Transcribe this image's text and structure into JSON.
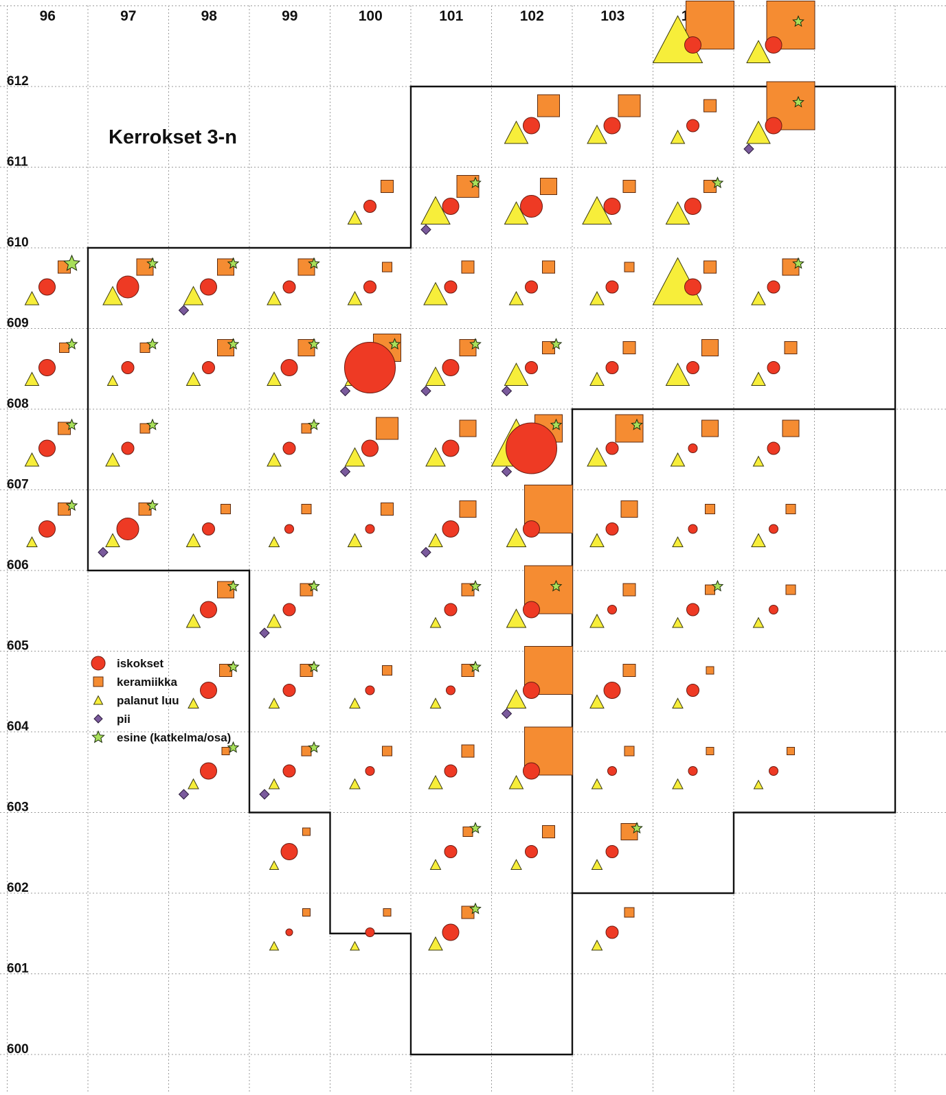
{
  "title": "Kerrokset 3-n",
  "columns": [
    "96",
    "97",
    "98",
    "99",
    "100",
    "101",
    "102",
    "103",
    "104"
  ],
  "rows": [
    "612",
    "611",
    "610",
    "609",
    "608",
    "607",
    "606",
    "605",
    "604",
    "603",
    "602",
    "601",
    "600"
  ],
  "colors": {
    "iskokset": "#ee3a24",
    "keramiikka": "#f58c32",
    "palanut_luu": "#f7ee3a",
    "pii": "#7a5a9c",
    "esine": "#a8e05a",
    "grid": "#9a9a9a",
    "boundary": "#111111"
  },
  "legend": [
    {
      "key": "iskokset",
      "label": "iskokset",
      "icon": "circle"
    },
    {
      "key": "keramiikka",
      "label": "keramiikka",
      "icon": "square"
    },
    {
      "key": "palanut_luu",
      "label": "palanut luu",
      "icon": "triangle"
    },
    {
      "key": "pii",
      "label": "pii",
      "icon": "diamond"
    },
    {
      "key": "esine",
      "label": "esine (katkelma/osa)",
      "icon": "star"
    }
  ],
  "squares": [
    {
      "x": 105,
      "y": 612,
      "c": 1,
      "k": 4,
      "t": 4
    },
    {
      "x": 106,
      "y": 612,
      "c": 1,
      "k": 4,
      "t": 2,
      "s": 1
    },
    {
      "x": 103,
      "y": 611,
      "c": 1,
      "k": 2,
      "t": 2
    },
    {
      "x": 104,
      "y": 611,
      "c": 1,
      "k": 2,
      "t": 1
    },
    {
      "x": 105,
      "y": 611,
      "c": 0,
      "k": 0,
      "t": 0
    },
    {
      "x": 106,
      "y": 611,
      "c": 1,
      "k": 4,
      "t": 2,
      "p": 1,
      "s": 1
    },
    {
      "x": 101,
      "y": 610,
      "c": 0,
      "k": 0,
      "t": 0
    },
    {
      "x": 102,
      "y": 610,
      "c": 1,
      "k": 2,
      "t": 3,
      "p": 1,
      "s": 1
    },
    {
      "x": 103,
      "y": 610,
      "c": 2,
      "k": 1,
      "t": 2
    },
    {
      "x": 104,
      "y": 610,
      "c": 1,
      "k": 0,
      "t": 3
    },
    {
      "x": 105,
      "y": 610,
      "c": 1,
      "k": 0,
      "t": 2,
      "s": 1
    },
    {
      "x": 97,
      "y": 609,
      "c": 1,
      "k": 0,
      "t": 0,
      "s": 2
    },
    {
      "x": 98,
      "y": 609,
      "c": 2,
      "k": 1,
      "t": 1,
      "s": 1
    },
    {
      "x": 99,
      "y": 609,
      "c": 1,
      "k": 1,
      "t": 1,
      "p": 1,
      "s": 1
    },
    {
      "x": 100,
      "y": 609,
      "c": 0,
      "k": 1,
      "t": 0,
      "s": 1
    },
    {
      "x": 101,
      "y": 609,
      "c": 0,
      "k": -1,
      "t": 0
    },
    {
      "x": 102,
      "y": 609,
      "c": 0,
      "k": 0,
      "t": 2
    },
    {
      "x": 103,
      "y": 609,
      "c": 0,
      "k": 0,
      "t": 0
    },
    {
      "x": 104,
      "y": 609,
      "c": 0,
      "k": -1,
      "t": 0
    },
    {
      "x": 105,
      "y": 609,
      "c": 1,
      "k": 0,
      "t": 4
    },
    {
      "x": 106,
      "y": 609,
      "c": 0,
      "k": 1,
      "t": 0,
      "s": 1
    },
    {
      "x": 97,
      "y": 608,
      "c": 1,
      "k": -1,
      "t": 0,
      "s": 1
    },
    {
      "x": 98,
      "y": 608,
      "c": 0,
      "k": -1,
      "t": -1,
      "s": 1
    },
    {
      "x": 99,
      "y": 608,
      "c": 0,
      "k": 1,
      "t": 0,
      "s": 1
    },
    {
      "x": 100,
      "y": 608,
      "c": 1,
      "k": 1,
      "t": 0,
      "s": 1
    },
    {
      "x": 101,
      "y": 608,
      "c": 4,
      "k": 3,
      "t": 1,
      "p": 1,
      "s": 1
    },
    {
      "x": 102,
      "y": 608,
      "c": 1,
      "k": 1,
      "t": 1,
      "p": 1,
      "s": 1
    },
    {
      "x": 103,
      "y": 608,
      "c": 0,
      "k": 0,
      "t": 2,
      "p": 1,
      "s": 1
    },
    {
      "x": 104,
      "y": 608,
      "c": 0,
      "k": 0,
      "t": 0
    },
    {
      "x": 105,
      "y": 608,
      "c": 0,
      "k": 1,
      "t": 2
    },
    {
      "x": 106,
      "y": 608,
      "c": 0,
      "k": 0,
      "t": 0
    },
    {
      "x": 97,
      "y": 607,
      "c": 1,
      "k": 0,
      "t": 0,
      "s": 1
    },
    {
      "x": 98,
      "y": 607,
      "c": 0,
      "k": -1,
      "t": 0,
      "s": 1
    },
    {
      "x": 100,
      "y": 607,
      "c": 0,
      "k": -1,
      "t": 0,
      "s": 1
    },
    {
      "x": 101,
      "y": 607,
      "c": 1,
      "k": 2,
      "t": 1,
      "p": 1
    },
    {
      "x": 102,
      "y": 607,
      "c": 1,
      "k": 1,
      "t": 1
    },
    {
      "x": 103,
      "y": 607,
      "c": 4,
      "k": 3,
      "t": 4,
      "p": 1,
      "s": 1
    },
    {
      "x": 104,
      "y": 607,
      "c": 0,
      "k": 3,
      "t": 1,
      "s": 1
    },
    {
      "x": 105,
      "y": 607,
      "c": -1,
      "k": 1,
      "t": 0
    },
    {
      "x": 106,
      "y": 607,
      "c": 0,
      "k": 1,
      "t": -1
    },
    {
      "x": 97,
      "y": 606,
      "c": 1,
      "k": 0,
      "t": -1,
      "s": 1
    },
    {
      "x": 98,
      "y": 606,
      "c": 2,
      "k": 0,
      "t": 0,
      "p": 1,
      "s": 1
    },
    {
      "x": 99,
      "y": 606,
      "c": 0,
      "k": -1,
      "t": 0
    },
    {
      "x": 100,
      "y": 606,
      "c": -1,
      "k": -1,
      "t": -1
    },
    {
      "x": 101,
      "y": 606,
      "c": -1,
      "k": 0,
      "t": 0
    },
    {
      "x": 102,
      "y": 606,
      "c": 1,
      "k": 1,
      "t": 0,
      "p": 1
    },
    {
      "x": 103,
      "y": 606,
      "c": 1,
      "k": 4,
      "t": 1
    },
    {
      "x": 104,
      "y": 606,
      "c": 0,
      "k": 1,
      "t": 0
    },
    {
      "x": 105,
      "y": 606,
      "c": -1,
      "k": -1,
      "t": -1
    },
    {
      "x": 106,
      "y": 606,
      "c": -1,
      "k": -1,
      "t": 0
    },
    {
      "x": 99,
      "y": 605,
      "c": 1,
      "k": 1,
      "t": 0,
      "s": 1
    },
    {
      "x": 100,
      "y": 605,
      "c": 0,
      "k": 0,
      "t": 0,
      "p": 1,
      "s": 1
    },
    {
      "x": 102,
      "y": 605,
      "c": 0,
      "k": 0,
      "t": -1,
      "s": 1
    },
    {
      "x": 103,
      "y": 605,
      "c": 1,
      "k": 4,
      "t": 1,
      "s": 1
    },
    {
      "x": 104,
      "y": 605,
      "c": -1,
      "k": 0,
      "t": 0
    },
    {
      "x": 105,
      "y": 605,
      "c": 0,
      "k": -1,
      "t": -1,
      "s": 1
    },
    {
      "x": 106,
      "y": 605,
      "c": -1,
      "k": -1,
      "t": -1
    },
    {
      "x": 99,
      "y": 604,
      "c": 1,
      "k": 0,
      "t": -1,
      "s": 1
    },
    {
      "x": 100,
      "y": 604,
      "c": 0,
      "k": 0,
      "t": -1,
      "s": 1
    },
    {
      "x": 101,
      "y": 604,
      "c": -1,
      "k": -1,
      "t": -1
    },
    {
      "x": 102,
      "y": 604,
      "c": -1,
      "k": 0,
      "t": -1,
      "s": 1
    },
    {
      "x": 103,
      "y": 604,
      "c": 1,
      "k": 4,
      "t": 1,
      "p": 1
    },
    {
      "x": 104,
      "y": 604,
      "c": 1,
      "k": 0,
      "t": 0
    },
    {
      "x": 105,
      "y": 604,
      "c": 0,
      "k": -2,
      "t": -1
    },
    {
      "x": 99,
      "y": 603,
      "c": 1,
      "k": -2,
      "t": -1,
      "p": 1,
      "s": 1
    },
    {
      "x": 100,
      "y": 603,
      "c": 0,
      "k": -1,
      "t": -1,
      "p": 1,
      "s": 1
    },
    {
      "x": 101,
      "y": 603,
      "c": -1,
      "k": -1,
      "t": -1
    },
    {
      "x": 102,
      "y": 603,
      "c": 0,
      "k": 0,
      "t": 0
    },
    {
      "x": 103,
      "y": 603,
      "c": 1,
      "k": 4,
      "t": 0
    },
    {
      "x": 104,
      "y": 603,
      "c": -1,
      "k": -1,
      "t": -1
    },
    {
      "x": 105,
      "y": 603,
      "c": -1,
      "k": -2,
      "t": -1
    },
    {
      "x": 106,
      "y": 603,
      "c": -1,
      "k": -2,
      "t": -2
    },
    {
      "x": 100,
      "y": 602,
      "c": 1,
      "k": -2,
      "t": -2
    },
    {
      "x": 102,
      "y": 602,
      "c": 0,
      "k": -1,
      "t": -1,
      "s": 1
    },
    {
      "x": 103,
      "y": 602,
      "c": 0,
      "k": 0,
      "t": -1
    },
    {
      "x": 104,
      "y": 602,
      "c": 0,
      "k": 1,
      "t": -1,
      "s": 1
    },
    {
      "x": 100,
      "y": 601,
      "c": -2,
      "k": -2,
      "t": -2
    },
    {
      "x": 101,
      "y": 601,
      "c": -1,
      "k": -2,
      "t": -2
    },
    {
      "x": 102,
      "y": 601,
      "c": 1,
      "k": 0,
      "t": 0,
      "s": 1
    },
    {
      "x": 104,
      "y": 601,
      "c": 0,
      "k": -1,
      "t": -1
    }
  ]
}
